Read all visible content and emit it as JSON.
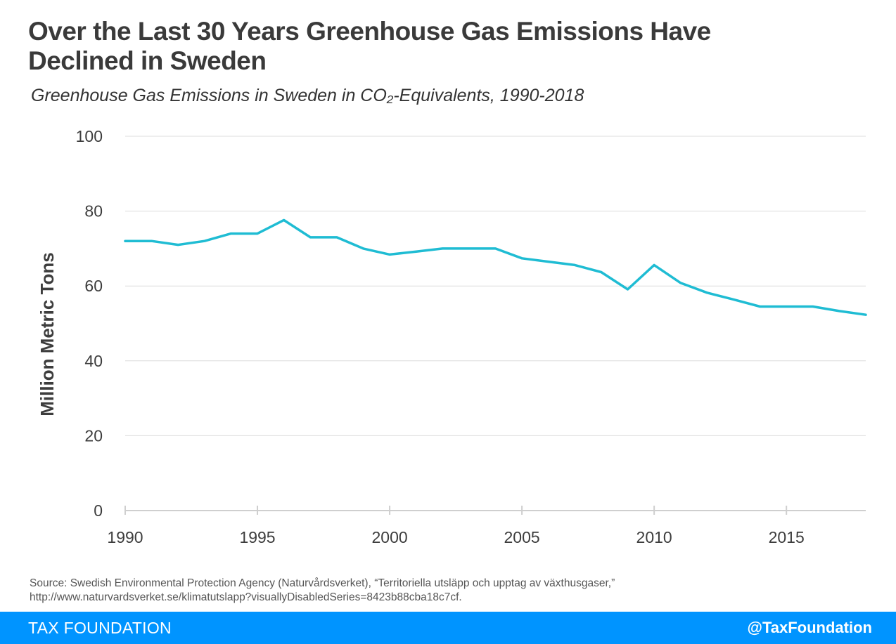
{
  "title": "Over the Last 30 Years Greenhouse Gas Emissions Have Declined in Sweden",
  "subtitle": "Greenhouse Gas Emissions in Sweden in CO₂-Equivalents, 1990-2018",
  "source": {
    "line1": "Source: Swedish Environmental Protection Agency (Naturvårdsverket), “Territoriella utsläpp och upptag av växthusgaser,”",
    "line2": "http://www.naturvardsverket.se/klimatutslapp?visuallyDisabledSeries=8423b88cba18c7cf."
  },
  "footer": {
    "brand": "TAX FOUNDATION",
    "handle": "@TaxFoundation",
    "color": "#0094ff"
  },
  "chart_data": {
    "type": "line",
    "ylabel": "Million Metric Tons",
    "xlabel": "",
    "ylim": [
      0,
      100
    ],
    "xlim": [
      1990,
      2018
    ],
    "yticks": [
      0,
      20,
      40,
      60,
      80,
      100
    ],
    "xticks": [
      1990,
      1995,
      2000,
      2005,
      2010,
      2015
    ],
    "grid": true,
    "line_color": "#1fbcd3",
    "x": [
      1990,
      1991,
      1992,
      1993,
      1994,
      1995,
      1996,
      1997,
      1998,
      1999,
      2000,
      2001,
      2002,
      2003,
      2004,
      2005,
      2006,
      2007,
      2008,
      2009,
      2010,
      2011,
      2012,
      2013,
      2014,
      2015,
      2016,
      2017,
      2018
    ],
    "series": [
      {
        "values": [
          72,
          72,
          71,
          72,
          74,
          74,
          77.6,
          73,
          73,
          70,
          68.4,
          69.2,
          70,
          70,
          70,
          67.4,
          66.5,
          65.6,
          63.7,
          59.1,
          65.6,
          60.8,
          58.2,
          56.4,
          54.5,
          54.5,
          54.5,
          53.3,
          52.3
        ]
      }
    ]
  }
}
